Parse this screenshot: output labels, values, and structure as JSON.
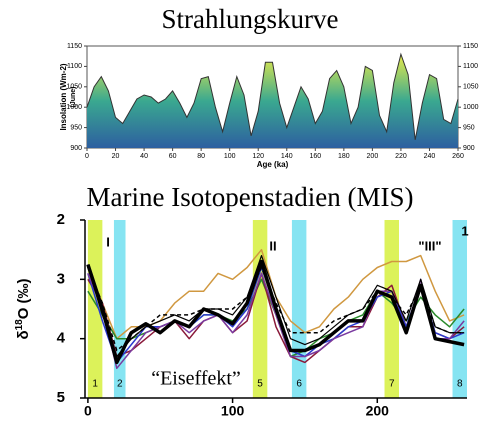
{
  "chart_data": [
    {
      "type": "area",
      "title": "Strahlungskurve",
      "ylabel": [
        "Insolation (Wm-2)",
        "(June)"
      ],
      "xlabel": "Age (ka)",
      "x": [
        0,
        5,
        10,
        15,
        20,
        25,
        30,
        35,
        40,
        45,
        50,
        55,
        60,
        65,
        70,
        75,
        80,
        85,
        90,
        95,
        100,
        105,
        110,
        115,
        120,
        125,
        130,
        135,
        140,
        145,
        150,
        155,
        160,
        165,
        170,
        175,
        180,
        185,
        190,
        195,
        200,
        205,
        210,
        215,
        220,
        225,
        230,
        235,
        240,
        245,
        250,
        255,
        260
      ],
      "values": [
        1000,
        1050,
        1075,
        1040,
        975,
        960,
        990,
        1020,
        1030,
        1025,
        1010,
        1020,
        1040,
        1010,
        975,
        1010,
        1070,
        1075,
        1000,
        940,
        1010,
        1075,
        1030,
        930,
        990,
        1110,
        1110,
        1010,
        950,
        1000,
        1050,
        1020,
        960,
        990,
        1070,
        1090,
        1050,
        960,
        1000,
        1100,
        1090,
        980,
        940,
        1060,
        1130,
        1080,
        920,
        1010,
        1080,
        1070,
        970,
        960,
        1020
      ],
      "xlim": [
        0,
        260
      ],
      "xticks": [
        0,
        20,
        40,
        60,
        80,
        100,
        120,
        140,
        160,
        180,
        200,
        220,
        240,
        260
      ],
      "ylim": [
        900,
        1150
      ],
      "yticks": [
        900,
        950,
        1000,
        1050,
        1100,
        1150
      ],
      "colors": [
        "#e6ea4a",
        "#3aa890",
        "#2d5fa0"
      ]
    },
    {
      "type": "line",
      "title": "Marine Isotopenstadien (MIS)",
      "ylabel": [
        "δ",
        "18",
        "O (‰)"
      ],
      "x": [
        0,
        10,
        20,
        30,
        40,
        50,
        60,
        70,
        80,
        90,
        100,
        110,
        120,
        130,
        140,
        150,
        160,
        170,
        180,
        190,
        200,
        210,
        220,
        230,
        240,
        250,
        260
      ],
      "xlim": [
        -2,
        262
      ],
      "xticks": [
        0,
        100,
        200
      ],
      "ylim": [
        2,
        5
      ],
      "yticks": [
        2,
        3,
        4,
        5
      ],
      "y_inverted": true,
      "bands": [
        {
          "label": "1",
          "from": 0,
          "to": 10,
          "color": "#dcf25a"
        },
        {
          "label": "2",
          "from": 18,
          "to": 26,
          "color": "#86e4f2"
        },
        {
          "label": "5",
          "from": 114,
          "to": 124,
          "color": "#dcf25a"
        },
        {
          "label": "6",
          "from": 141,
          "to": 151,
          "color": "#86e4f2"
        },
        {
          "label": "7",
          "from": 205,
          "to": 215,
          "color": "#dcf25a"
        },
        {
          "label": "8",
          "from": 252,
          "to": 262,
          "color": "#86e4f2"
        }
      ],
      "annotations": [
        "I",
        "II",
        "\"III\"",
        "1",
        "“Eiseffekt”"
      ],
      "series": [
        {
          "color": "#d09840",
          "width": 1.5,
          "values": [
            2.8,
            3.4,
            4.0,
            3.8,
            3.8,
            3.7,
            3.4,
            3.2,
            3.2,
            2.9,
            3.0,
            2.8,
            2.5,
            3.3,
            3.7,
            3.9,
            3.8,
            3.5,
            3.3,
            3.0,
            2.8,
            2.7,
            2.7,
            2.6,
            3.2,
            3.7,
            3.6
          ]
        },
        {
          "color": "#2a8a2a",
          "width": 1.5,
          "values": [
            3.2,
            3.6,
            4.0,
            4.0,
            3.9,
            3.8,
            3.7,
            3.8,
            3.6,
            3.6,
            3.7,
            3.5,
            3.0,
            3.6,
            4.3,
            4.2,
            4.0,
            3.9,
            3.7,
            3.6,
            3.2,
            3.4,
            3.7,
            3.3,
            3.6,
            3.8,
            3.5
          ]
        },
        {
          "color": "#8a1a3a",
          "width": 1.5,
          "values": [
            3.0,
            3.4,
            4.3,
            4.2,
            4.0,
            3.8,
            3.7,
            4.0,
            3.7,
            3.6,
            3.9,
            3.7,
            2.9,
            3.8,
            4.3,
            4.4,
            4.2,
            4.0,
            3.8,
            3.8,
            3.3,
            3.1,
            3.8,
            3.1,
            3.9,
            4.0,
            3.8
          ]
        },
        {
          "color": "#2a3ad0",
          "width": 1.5,
          "values": [
            2.9,
            3.7,
            4.4,
            4.1,
            3.8,
            3.8,
            3.7,
            3.8,
            3.6,
            3.6,
            3.8,
            3.5,
            2.8,
            3.5,
            4.2,
            4.3,
            4.1,
            4.0,
            3.8,
            3.7,
            3.3,
            3.2,
            3.8,
            3.1,
            3.9,
            4.0,
            3.9
          ]
        },
        {
          "color": "#7a3aa0",
          "width": 1.5,
          "values": [
            2.9,
            3.5,
            4.5,
            4.2,
            3.9,
            3.8,
            3.7,
            3.9,
            3.7,
            3.6,
            3.9,
            3.6,
            2.9,
            3.6,
            4.3,
            4.3,
            4.2,
            4.0,
            3.9,
            3.8,
            3.2,
            3.2,
            3.9,
            3.0,
            4.0,
            4.0,
            3.7
          ]
        },
        {
          "color": "#000000",
          "width": 1.5,
          "dashed": true,
          "values": [
            2.8,
            3.4,
            4.2,
            4.0,
            3.8,
            3.6,
            3.6,
            3.6,
            3.5,
            3.5,
            3.5,
            3.3,
            2.8,
            3.4,
            3.9,
            3.9,
            3.9,
            3.7,
            3.6,
            3.5,
            3.2,
            3.3,
            3.6,
            3.1,
            3.8,
            3.9,
            3.9
          ]
        },
        {
          "color": "#000000",
          "width": 1.2,
          "values": [
            2.8,
            3.6,
            4.3,
            4.0,
            3.8,
            3.7,
            3.6,
            3.7,
            3.5,
            3.5,
            3.6,
            3.3,
            2.6,
            3.3,
            4.0,
            4.1,
            4.0,
            3.8,
            3.6,
            3.5,
            3.1,
            3.2,
            3.7,
            3.0,
            3.8,
            3.9,
            3.9
          ]
        },
        {
          "color": "#000000",
          "width": 3.5,
          "values": [
            2.75,
            3.5,
            4.4,
            3.9,
            3.75,
            3.9,
            3.7,
            3.8,
            3.5,
            3.6,
            3.75,
            3.4,
            2.7,
            3.5,
            4.2,
            4.2,
            4.1,
            3.9,
            3.7,
            3.7,
            3.2,
            3.3,
            3.9,
            3.1,
            4.0,
            4.05,
            4.1
          ]
        }
      ]
    }
  ]
}
